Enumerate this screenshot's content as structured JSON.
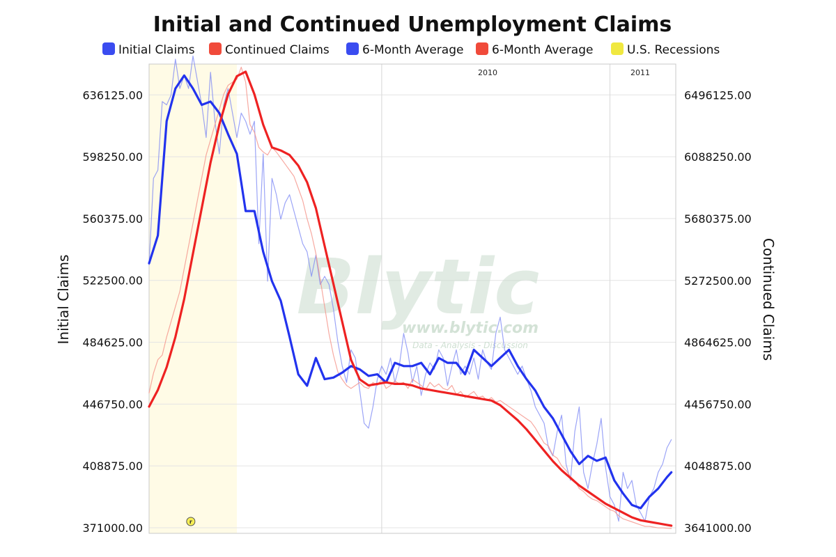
{
  "chart_data": {
    "type": "line",
    "title": "Initial and Continued Unemployment Claims",
    "legend": [
      {
        "label": "Initial Claims",
        "color": "#3a4cf0"
      },
      {
        "label": "Continued Claims",
        "color": "#f04a3a"
      },
      {
        "label": "6-Month Average",
        "color": "#3a4cf0"
      },
      {
        "label": "6-Month Average",
        "color": "#f04a3a"
      },
      {
        "label": "U.S. Recessions",
        "color": "#f0e840"
      }
    ],
    "legend_placement": "top",
    "grid": true,
    "x_year_labels": [
      {
        "label": "2010",
        "x": 53
      },
      {
        "label": "2011",
        "x": 105
      }
    ],
    "xlim": [
      0,
      120
    ],
    "y_left": {
      "label": "Initial Claims",
      "ylim": [
        371000,
        655000
      ],
      "ticks": [
        "371000.00",
        "408875.00",
        "446750.00",
        "484625.00",
        "522500.00",
        "560375.00",
        "598250.00",
        "636125.00"
      ],
      "tick_values": [
        371000,
        408875,
        446750,
        484625,
        522500,
        560375,
        598250,
        636125
      ]
    },
    "y_right": {
      "label": "Continued Claims",
      "ylim": [
        3641000,
        6700000
      ],
      "ticks": [
        "3641000.00",
        "4048875.00",
        "4456750.00",
        "4864625.00",
        "5272500.00",
        "5680375.00",
        "6088250.00",
        "6496125.00"
      ],
      "tick_values": [
        3641000,
        4048875,
        4456750,
        4864625,
        5272500,
        5680375,
        6088250,
        6496125
      ]
    },
    "recession_band": {
      "x_start": 0,
      "x_end": 20,
      "color": "#fffbe6"
    },
    "event_marker": {
      "label": "r",
      "x": 9.5
    },
    "series": [
      {
        "name": "Initial Claims",
        "axis": "left",
        "color": "#7a86f4",
        "width": 1.2,
        "opacity": 0.75,
        "x": [
          0,
          1,
          2,
          3,
          4,
          5,
          6,
          7,
          8,
          9,
          10,
          11,
          12,
          13,
          14,
          15,
          16,
          17,
          18,
          19,
          20,
          21,
          22,
          23,
          24,
          25,
          26,
          27,
          28,
          29,
          30,
          31,
          32,
          33,
          34,
          35,
          36,
          37,
          38,
          39,
          40,
          41,
          42,
          43,
          44,
          45,
          46,
          47,
          48,
          49,
          50,
          51,
          52,
          53,
          54,
          55,
          56,
          57,
          58,
          59,
          60,
          61,
          62,
          63,
          64,
          65,
          66,
          67,
          68,
          69,
          70,
          71,
          72,
          73,
          74,
          75,
          76,
          77,
          78,
          79,
          80,
          81,
          82,
          83,
          84,
          85,
          86,
          87,
          88,
          89,
          90,
          91,
          92,
          93,
          94,
          95,
          96,
          97,
          98,
          99,
          100,
          101,
          102,
          103,
          104,
          105,
          106,
          107,
          108,
          109,
          110,
          111,
          112,
          113,
          114,
          115,
          116,
          117,
          118,
          119
        ],
        "values": [
          532000,
          585000,
          590000,
          632000,
          630000,
          636000,
          658000,
          640000,
          648000,
          640000,
          660000,
          645000,
          630000,
          610000,
          650000,
          620000,
          600000,
          630000,
          640000,
          625000,
          610000,
          625000,
          620000,
          612000,
          620000,
          545000,
          600000,
          522000,
          585000,
          575000,
          560000,
          570000,
          575000,
          565000,
          555000,
          545000,
          540000,
          525000,
          538000,
          520000,
          525000,
          520000,
          505000,
          485000,
          470000,
          460000,
          480000,
          475000,
          455000,
          435000,
          432000,
          445000,
          462000,
          470000,
          465000,
          475000,
          460000,
          470000,
          490000,
          478000,
          460000,
          470000,
          452000,
          465000,
          472000,
          468000,
          480000,
          475000,
          458000,
          470000,
          480000,
          465000,
          470000,
          465000,
          475000,
          462000,
          480000,
          472000,
          468000,
          490000,
          500000,
          480000,
          475000,
          470000,
          465000,
          470000,
          462000,
          455000,
          445000,
          440000,
          435000,
          420000,
          415000,
          430000,
          440000,
          410000,
          400000,
          430000,
          445000,
          405000,
          395000,
          410000,
          422000,
          438000,
          408000,
          390000,
          385000,
          375000,
          405000,
          395000,
          400000,
          385000,
          380000,
          375000,
          390000,
          395000,
          405000,
          410000,
          420000,
          425000
        ]
      },
      {
        "name": "Continued Claims",
        "axis": "right",
        "color": "#f5948a",
        "width": 1.2,
        "opacity": 0.8,
        "x": [
          0,
          1,
          2,
          3,
          4,
          5,
          6,
          7,
          8,
          9,
          10,
          11,
          12,
          13,
          14,
          15,
          16,
          17,
          18,
          19,
          20,
          21,
          22,
          23,
          24,
          25,
          26,
          27,
          28,
          29,
          30,
          31,
          32,
          33,
          34,
          35,
          36,
          37,
          38,
          39,
          40,
          41,
          42,
          43,
          44,
          45,
          46,
          47,
          48,
          49,
          50,
          51,
          52,
          53,
          54,
          55,
          56,
          57,
          58,
          59,
          60,
          61,
          62,
          63,
          64,
          65,
          66,
          67,
          68,
          69,
          70,
          71,
          72,
          73,
          74,
          75,
          76,
          77,
          78,
          79,
          80,
          81,
          82,
          83,
          84,
          85,
          86,
          87,
          88,
          89,
          90,
          91,
          92,
          93,
          94,
          95,
          96,
          97,
          98,
          99,
          100,
          101,
          102,
          103,
          104,
          105,
          106,
          107,
          108,
          109,
          110,
          111,
          112,
          113,
          114,
          115,
          116,
          117,
          118,
          119
        ],
        "values": [
          4530000,
          4660000,
          4750000,
          4780000,
          4900000,
          5000000,
          5100000,
          5200000,
          5350000,
          5500000,
          5650000,
          5800000,
          5950000,
          6100000,
          6200000,
          6300000,
          6400000,
          6500000,
          6560000,
          6580000,
          6600000,
          6680000,
          6580000,
          6300000,
          6250000,
          6150000,
          6120000,
          6100000,
          6150000,
          6120000,
          6080000,
          6040000,
          6000000,
          5960000,
          5880000,
          5800000,
          5680000,
          5580000,
          5450000,
          5280000,
          5100000,
          4920000,
          4780000,
          4670000,
          4620000,
          4580000,
          4560000,
          4580000,
          4600000,
          4570000,
          4560000,
          4600000,
          4580000,
          4620000,
          4560000,
          4580000,
          4610000,
          4590000,
          4600000,
          4560000,
          4620000,
          4600000,
          4580000,
          4550000,
          4600000,
          4570000,
          4590000,
          4560000,
          4550000,
          4580000,
          4520000,
          4540000,
          4500000,
          4520000,
          4540000,
          4500000,
          4510000,
          4480000,
          4500000,
          4470000,
          4480000,
          4460000,
          4440000,
          4420000,
          4400000,
          4380000,
          4360000,
          4340000,
          4300000,
          4250000,
          4200000,
          4180000,
          4120000,
          4100000,
          4050000,
          4020000,
          3980000,
          3950000,
          3900000,
          3880000,
          3850000,
          3830000,
          3820000,
          3800000,
          3780000,
          3760000,
          3750000,
          3720000,
          3700000,
          3690000,
          3680000,
          3670000,
          3660000,
          3650000,
          3650000,
          3645000,
          3640000,
          3640000,
          3638000,
          3636000
        ]
      },
      {
        "name": "6-Month Average",
        "axis": "left",
        "color": "#2233ee",
        "width": 3.2,
        "opacity": 1,
        "x": [
          0,
          2,
          4,
          6,
          8,
          10,
          12,
          14,
          16,
          18,
          20,
          22,
          24,
          26,
          28,
          30,
          32,
          34,
          36,
          38,
          40,
          42,
          44,
          46,
          48,
          50,
          52,
          54,
          56,
          58,
          60,
          62,
          64,
          66,
          68,
          70,
          72,
          74,
          76,
          78,
          80,
          82,
          84,
          86,
          88,
          90,
          92,
          94,
          96,
          98,
          100,
          102,
          104,
          106,
          108,
          110,
          112,
          114,
          116,
          118,
          119
        ],
        "values": [
          533000,
          550000,
          620000,
          640000,
          648000,
          640000,
          630000,
          632000,
          625000,
          612000,
          600000,
          565000,
          565000,
          540000,
          522000,
          510000,
          488000,
          465000,
          458000,
          475000,
          462000,
          463000,
          466000,
          470000,
          468000,
          464000,
          465000,
          460000,
          472000,
          470000,
          470000,
          472000,
          465000,
          475000,
          472000,
          472000,
          465000,
          480000,
          475000,
          470000,
          475000,
          480000,
          470000,
          462000,
          455000,
          445000,
          438000,
          428000,
          418000,
          410000,
          415000,
          412000,
          414000,
          400000,
          392000,
          385000,
          383000,
          390000,
          395000,
          402000,
          405000
        ]
      },
      {
        "name": "6-Month Average",
        "axis": "right",
        "color": "#ee2222",
        "width": 3.2,
        "opacity": 1,
        "x": [
          0,
          2,
          4,
          6,
          8,
          10,
          12,
          14,
          16,
          18,
          20,
          22,
          24,
          26,
          28,
          30,
          32,
          34,
          36,
          38,
          40,
          42,
          44,
          46,
          48,
          50,
          52,
          54,
          56,
          58,
          60,
          62,
          64,
          66,
          68,
          70,
          72,
          74,
          76,
          78,
          80,
          82,
          84,
          86,
          88,
          90,
          92,
          94,
          96,
          98,
          100,
          102,
          104,
          106,
          108,
          110,
          112,
          114,
          116,
          118,
          119
        ],
        "values": [
          4440000,
          4550000,
          4700000,
          4900000,
          5150000,
          5450000,
          5750000,
          6050000,
          6300000,
          6500000,
          6620000,
          6650000,
          6500000,
          6300000,
          6150000,
          6130000,
          6100000,
          6030000,
          5920000,
          5750000,
          5500000,
          5250000,
          5000000,
          4750000,
          4620000,
          4580000,
          4590000,
          4600000,
          4590000,
          4590000,
          4580000,
          4560000,
          4550000,
          4540000,
          4530000,
          4520000,
          4510000,
          4500000,
          4490000,
          4480000,
          4450000,
          4400000,
          4350000,
          4290000,
          4220000,
          4150000,
          4080000,
          4020000,
          3970000,
          3920000,
          3880000,
          3840000,
          3800000,
          3770000,
          3740000,
          3710000,
          3690000,
          3680000,
          3670000,
          3660000,
          3655000
        ]
      }
    ]
  }
}
